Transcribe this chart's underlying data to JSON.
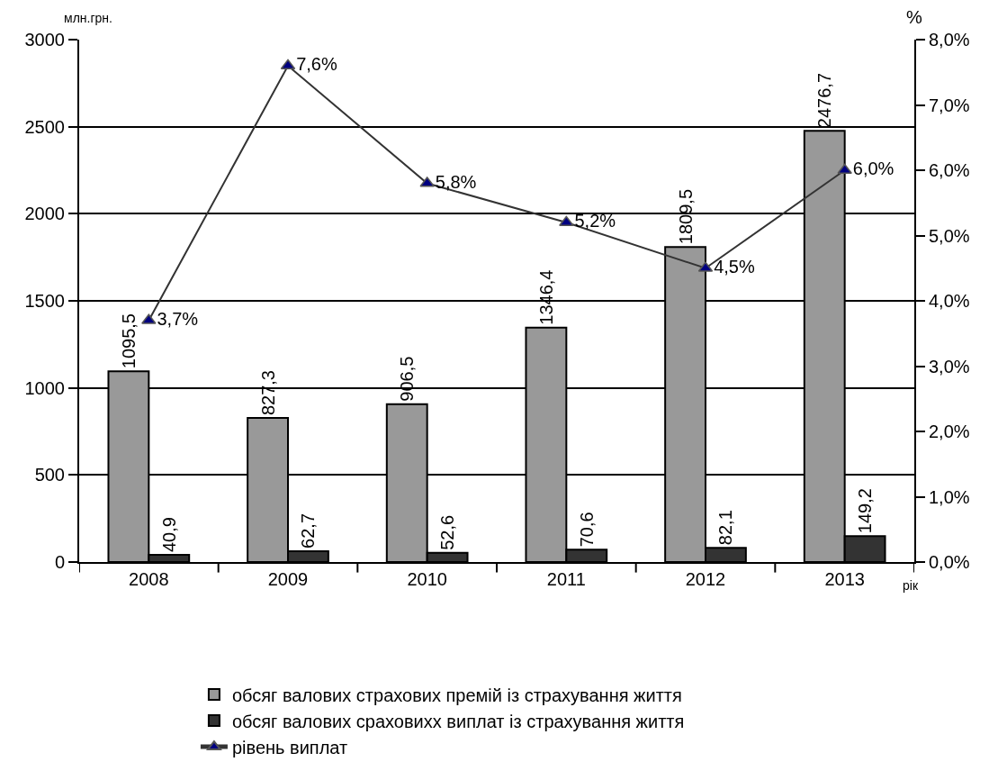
{
  "chart_data": {
    "type": "bar",
    "categories": [
      "2008",
      "2009",
      "2010",
      "2011",
      "2012",
      "2013"
    ],
    "xlabel": "рік",
    "ylabel": "млн.грн.",
    "y2label": "%",
    "ylim": [
      0,
      3000
    ],
    "yticks": [
      0,
      500,
      1000,
      1500,
      2000,
      2500,
      3000
    ],
    "y2lim": [
      0,
      8
    ],
    "y2ticks": [
      {
        "value": 0,
        "label": "0,0%"
      },
      {
        "value": 1,
        "label": "1,0%"
      },
      {
        "value": 2,
        "label": "2,0%"
      },
      {
        "value": 3,
        "label": "3,0%"
      },
      {
        "value": 4,
        "label": "4,0%"
      },
      {
        "value": 5,
        "label": "5,0%"
      },
      {
        "value": 6,
        "label": "6,0%"
      },
      {
        "value": 7,
        "label": "7,0%"
      },
      {
        "value": 8,
        "label": "8,0%"
      }
    ],
    "grid": "y",
    "legend": "bottom",
    "series": [
      {
        "name": "обсяг валових страхових премій із страхування життя",
        "color": "#999999",
        "values": [
          1095.5,
          827.3,
          906.5,
          1346.4,
          1809.5,
          2476.7
        ],
        "value_labels": [
          "1095,5",
          "827,3",
          "906,5",
          "1346,4",
          "1809,5",
          "2476,7"
        ]
      },
      {
        "name": "обсяг валових сраховихх виплат із страхування життя",
        "color": "#333333",
        "values": [
          40.9,
          62.7,
          52.6,
          70.6,
          82.1,
          149.2
        ],
        "value_labels": [
          "40,9",
          "62,7",
          "52,6",
          "70,6",
          "82,1",
          "149,2"
        ]
      },
      {
        "name": "рівень виплат",
        "type": "line",
        "axis": "y2",
        "marker": "triangle",
        "color": "#333333",
        "colors": [
          "#000080",
          "#000080",
          "#000080",
          "#000080",
          "#000080",
          "#000080"
        ],
        "values": [
          3.7,
          7.6,
          5.8,
          5.2,
          4.5,
          6.0
        ],
        "value_labels": [
          "3,7%",
          "7,6%",
          "5,8%",
          "5,2%",
          "4,5%",
          "6,0%"
        ]
      }
    ]
  }
}
